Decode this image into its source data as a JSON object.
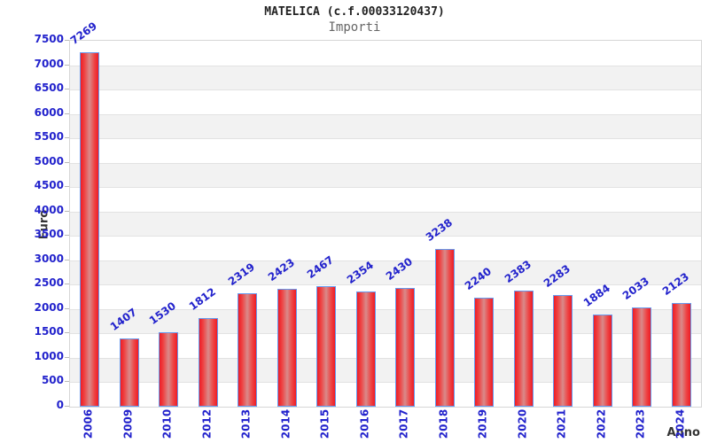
{
  "chart_data": {
    "type": "bar",
    "title": "MATELICA (c.f.00033120437)",
    "subtitle": "Importi",
    "xlabel": "Anno",
    "ylabel": "Euro",
    "categories": [
      "2006",
      "2009",
      "2010",
      "2012",
      "2013",
      "2014",
      "2015",
      "2016",
      "2017",
      "2018",
      "2019",
      "2020",
      "2021",
      "2022",
      "2023",
      "2024"
    ],
    "values": [
      7269,
      1407,
      1530,
      1812,
      2319,
      2423,
      2467,
      2354,
      2430,
      3238,
      2240,
      2383,
      2283,
      1884,
      2033,
      2123
    ],
    "ylim": [
      0,
      7500
    ],
    "ytick_step": 500,
    "grid": true,
    "legend_position": "none",
    "colors": {
      "bar_edge_red": "#ee1c25",
      "bar_mid": "#d98a8a",
      "bar_border_blue": "#6699ee",
      "label_blue": "#2222cc",
      "band_gray": "#f2f2f2",
      "gridline": "#e2e2e2",
      "plot_border": "#d6d6d6",
      "title_color": "#222222",
      "subtitle_color": "#666666",
      "axis_title_color": "#333333"
    }
  }
}
